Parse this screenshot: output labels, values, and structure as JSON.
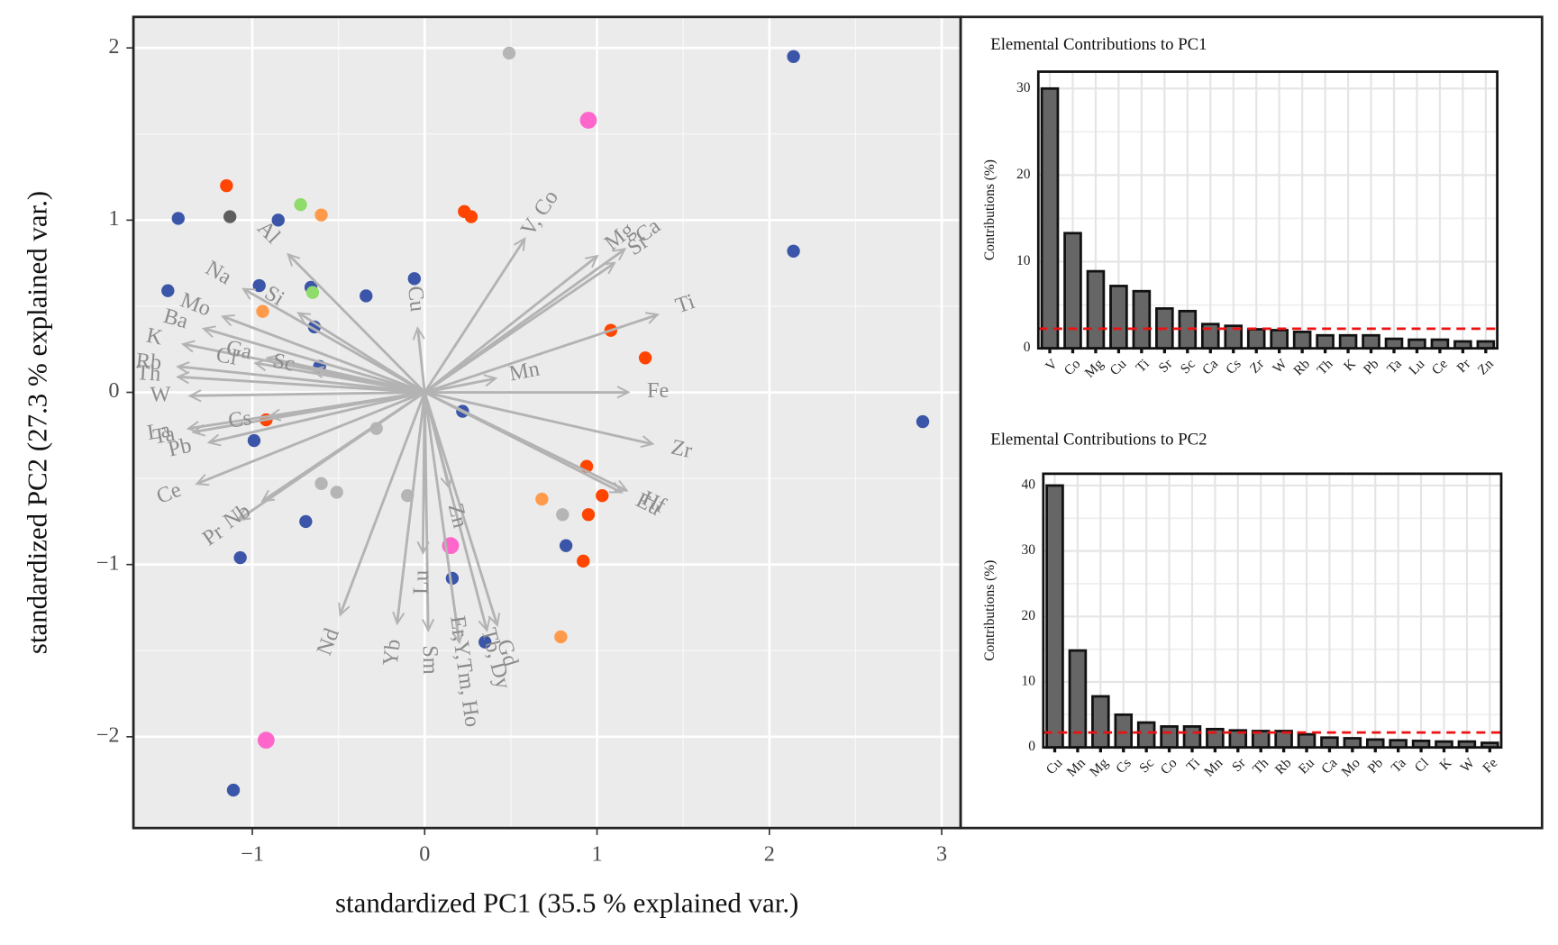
{
  "chart_data": [
    {
      "type": "scatter",
      "xlabel": "standardized PC1 (35.5 % explained var.)",
      "ylabel": "standardized PC2 (27.3 % explained var.)",
      "xlim": [
        -1.69,
        3.11
      ],
      "ylim": [
        -2.53,
        2.18
      ],
      "xticks": [
        {
          "value": -1,
          "label": "−1"
        },
        0,
        1,
        2,
        3
      ],
      "yticks": [
        {
          "value": -2,
          "label": "−2"
        },
        {
          "value": -1,
          "label": "−1"
        },
        0,
        1,
        2
      ],
      "grid": true,
      "series": [
        {
          "color": "#3b56a8",
          "size": 6.5,
          "x": [
            2.14,
            -1.43,
            -0.85,
            2.14,
            -1.49,
            -0.96,
            -0.66,
            -0.34,
            -0.06,
            -0.64,
            -0.61,
            2.89,
            0.22,
            -0.99,
            -0.69,
            0.82,
            -1.07,
            0.16,
            0.35,
            -1.11
          ],
          "y": [
            1.95,
            1.01,
            1.0,
            0.82,
            0.59,
            0.62,
            0.61,
            0.56,
            0.66,
            0.38,
            0.15,
            -0.17,
            -0.11,
            -0.28,
            -0.75,
            -0.89,
            -0.96,
            -1.08,
            -1.45,
            -2.31
          ]
        },
        {
          "color": "#ff4500",
          "size": 6.5,
          "x": [
            -1.15,
            0.23,
            0.27,
            1.08,
            1.28,
            -0.92,
            0.94,
            1.03,
            0.95,
            0.92
          ],
          "y": [
            1.2,
            1.05,
            1.02,
            0.36,
            0.2,
            -0.16,
            -0.43,
            -0.6,
            -0.71,
            -0.98
          ]
        },
        {
          "color": "#b5b5b5",
          "size": 6.5,
          "x": [
            0.49,
            -0.28,
            -0.6,
            -0.51,
            -0.1,
            0.8
          ],
          "y": [
            1.97,
            -0.21,
            -0.53,
            -0.58,
            -0.6,
            -0.71
          ]
        },
        {
          "color": "#ff9a4a",
          "size": 6.5,
          "x": [
            -0.6,
            -0.94,
            0.68,
            0.79
          ],
          "y": [
            1.03,
            0.47,
            -0.62,
            -1.42
          ]
        },
        {
          "color": "#8fdc6a",
          "size": 6.5,
          "x": [
            -0.72,
            -0.65
          ],
          "y": [
            1.09,
            0.58
          ]
        },
        {
          "color": "#5e5e5e",
          "size": 6.5,
          "x": [
            -1.13
          ],
          "y": [
            1.02
          ]
        },
        {
          "color": "#ff66cc",
          "size": 8.5,
          "x": [
            0.95,
            0.15,
            -0.92
          ],
          "y": [
            1.58,
            -0.89,
            -2.02
          ]
        }
      ],
      "arrows": [
        {
          "label": "V, Co",
          "x": 0.58,
          "y": 0.89
        },
        {
          "label": "Mg",
          "x": 1.0,
          "y": 0.79
        },
        {
          "label": "Sr",
          "x": 1.1,
          "y": 0.75
        },
        {
          "label": "Ca",
          "x": 1.16,
          "y": 0.83
        },
        {
          "label": "Ti",
          "x": 1.35,
          "y": 0.45
        },
        {
          "label": "Mn",
          "x": 0.41,
          "y": 0.08
        },
        {
          "label": "Fe",
          "x": 1.18,
          "y": 0.0
        },
        {
          "label": "Zr",
          "x": 1.32,
          "y": -0.3
        },
        {
          "label": "Eu",
          "x": 1.14,
          "y": -0.58
        },
        {
          "label": "Hf",
          "x": 1.17,
          "y": -0.57
        },
        {
          "label": "Gd",
          "x": 0.42,
          "y": -1.35
        },
        {
          "label": "Tb, Dy",
          "x": 0.36,
          "y": -1.38
        },
        {
          "label": "Er,Y,Tm, Ho",
          "x": 0.2,
          "y": -1.45
        },
        {
          "label": "Zn",
          "x": 0.14,
          "y": -0.55
        },
        {
          "label": "Sm",
          "x": 0.02,
          "y": -1.38
        },
        {
          "label": "Lu",
          "x": -0.01,
          "y": -0.93
        },
        {
          "label": "Yb",
          "x": -0.16,
          "y": -1.34
        },
        {
          "label": "Nd",
          "x": -0.49,
          "y": -1.29
        },
        {
          "label": "Cu",
          "x": -0.04,
          "y": 0.37
        },
        {
          "label": "Al",
          "x": -0.79,
          "y": 0.8
        },
        {
          "label": "Si",
          "x": -0.73,
          "y": 0.46
        },
        {
          "label": "Na",
          "x": -1.05,
          "y": 0.6
        },
        {
          "label": "Mo",
          "x": -1.17,
          "y": 0.44
        },
        {
          "label": "Ba",
          "x": -1.28,
          "y": 0.37
        },
        {
          "label": "K",
          "x": -1.4,
          "y": 0.28
        },
        {
          "label": "Rb",
          "x": -1.43,
          "y": 0.15
        },
        {
          "label": "Th",
          "x": -1.43,
          "y": 0.09
        },
        {
          "label": "W",
          "x": -1.36,
          "y": -0.02
        },
        {
          "label": "Cl",
          "x": -0.98,
          "y": 0.17
        },
        {
          "label": "Ga",
          "x": -0.91,
          "y": 0.2
        },
        {
          "label": "Sc",
          "x": -0.65,
          "y": 0.13
        },
        {
          "label": "Cs",
          "x": -0.9,
          "y": -0.14
        },
        {
          "label": "La",
          "x": -1.37,
          "y": -0.21
        },
        {
          "label": "Ta",
          "x": -1.34,
          "y": -0.23
        },
        {
          "label": "Pb",
          "x": -1.25,
          "y": -0.29
        },
        {
          "label": "Ce",
          "x": -1.32,
          "y": -0.53
        },
        {
          "label": "Nb",
          "x": -0.94,
          "y": -0.63
        },
        {
          "label": "Pr",
          "x": -1.08,
          "y": -0.74
        }
      ]
    },
    {
      "type": "bar",
      "title": "Elemental Contributions to PC1",
      "ylabel": "Contributions (%)",
      "categories": [
        "V",
        "Co",
        "Mg",
        "Cu",
        "Ti",
        "Sr",
        "Sc",
        "Ca",
        "Cs",
        "Zr",
        "W",
        "Rb",
        "Th",
        "K",
        "Pb",
        "Ta",
        "Lu",
        "Ce",
        "Pr",
        "Zn"
      ],
      "values": [
        30.0,
        13.3,
        8.9,
        7.2,
        6.6,
        4.6,
        4.3,
        2.8,
        2.6,
        2.2,
        2.1,
        1.9,
        1.5,
        1.5,
        1.5,
        1.1,
        1.0,
        1.0,
        0.8,
        0.8
      ],
      "ylim": [
        0,
        31.95
      ],
      "yticks": [
        0,
        10,
        20,
        30
      ],
      "reference_line": 2.27,
      "reference_color": "#ee1111",
      "color": "#666666",
      "grid": true
    },
    {
      "type": "bar",
      "title": "Elemental Contributions to PC2",
      "ylabel": "Contributions (%)",
      "categories": [
        "Cu",
        "Mn",
        "Mg",
        "Cs",
        "Sc",
        "Co",
        "Ti",
        "Mn",
        "Sr",
        "Th",
        "Rb",
        "Eu",
        "Ca",
        "Mo",
        "Pb",
        "Ta",
        "Cl",
        "K",
        "W",
        "Fe"
      ],
      "values": [
        40.0,
        14.8,
        7.8,
        5.0,
        3.8,
        3.2,
        3.2,
        2.8,
        2.6,
        2.5,
        2.5,
        2.0,
        1.5,
        1.4,
        1.2,
        1.1,
        1.0,
        0.9,
        0.9,
        0.7
      ],
      "ylim": [
        0,
        41.8
      ],
      "yticks": [
        0,
        10,
        20,
        30,
        40
      ],
      "reference_line": 2.27,
      "reference_color": "#ee1111",
      "color": "#666666",
      "grid": true
    }
  ]
}
